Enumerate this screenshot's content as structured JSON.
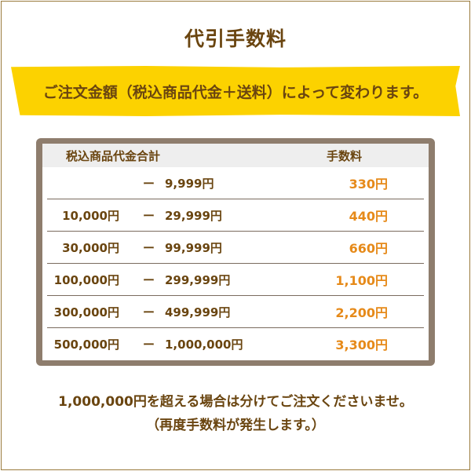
{
  "title": "代引手数料",
  "banner": "ご注文金額（税込商品代金＋送料）によって変わります。",
  "table": {
    "headers": {
      "amount": "税込商品代金合計",
      "fee": "手数料"
    },
    "rows": [
      {
        "from": "",
        "dash": "ー",
        "to": "9,999円",
        "fee": "330円"
      },
      {
        "from": "10,000円",
        "dash": "ー",
        "to": "29,999円",
        "fee": "440円"
      },
      {
        "from": "30,000円",
        "dash": "ー",
        "to": "99,999円",
        "fee": "660円"
      },
      {
        "from": "100,000円",
        "dash": "ー",
        "to": "299,999円",
        "fee": "1,100円"
      },
      {
        "from": "300,000円",
        "dash": "ー",
        "to": "499,999円",
        "fee": "2,200円"
      },
      {
        "from": "500,000円",
        "dash": "ー",
        "to": "1,000,000円",
        "fee": "3,300円"
      }
    ]
  },
  "notes": [
    "1,000,000円を超える場合は分けてご注文くださいませ。",
    "（再度手数料が発生します。）"
  ],
  "colors": {
    "text": "#6a4510",
    "fee": "#e68a1a",
    "banner": "#fcd200",
    "table_frame": "#8e7d6d"
  }
}
